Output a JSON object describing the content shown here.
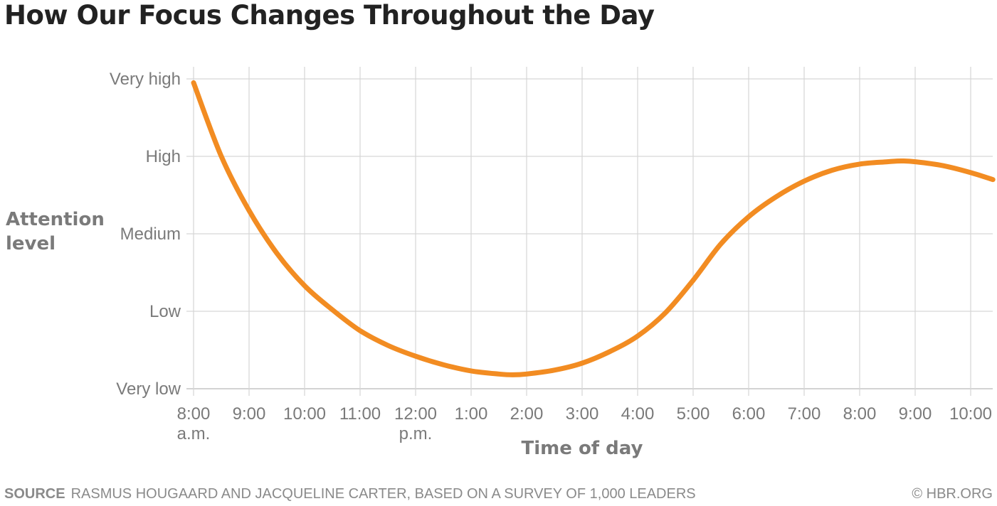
{
  "title": "How Our Focus Changes Throughout the Day",
  "source_label": "SOURCE",
  "source_text": "RASMUS HOUGAARD AND JACQUELINE CARTER, BASED ON A SURVEY OF 1,000 LEADERS",
  "copyright": "© HBR.ORG",
  "chart_data": {
    "type": "line",
    "title": "How Our Focus Changes Throughout the Day",
    "xlabel": "Time of day",
    "ylabel": "Attention level",
    "y_categories": [
      "Very low",
      "Low",
      "Medium",
      "High",
      "Very high"
    ],
    "x_ticks": [
      {
        "label": "8:00",
        "sub": "a.m."
      },
      {
        "label": "9:00",
        "sub": ""
      },
      {
        "label": "10:00",
        "sub": ""
      },
      {
        "label": "11:00",
        "sub": ""
      },
      {
        "label": "12:00",
        "sub": "p.m."
      },
      {
        "label": "1:00",
        "sub": ""
      },
      {
        "label": "2:00",
        "sub": ""
      },
      {
        "label": "3:00",
        "sub": ""
      },
      {
        "label": "4:00",
        "sub": ""
      },
      {
        "label": "5:00",
        "sub": ""
      },
      {
        "label": "6:00",
        "sub": ""
      },
      {
        "label": "7:00",
        "sub": ""
      },
      {
        "label": "8:00",
        "sub": ""
      },
      {
        "label": "9:00",
        "sub": ""
      },
      {
        "label": "10:00",
        "sub": ""
      }
    ],
    "xlim": [
      8,
      22.45
    ],
    "ylim": [
      0,
      4
    ],
    "grid": true,
    "line_color": "#f28c22",
    "series": [
      {
        "x": [
          8.0,
          8.5,
          9.0,
          9.5,
          10.0,
          10.5,
          11.0,
          11.5,
          12.0,
          12.5,
          13.0,
          13.5,
          13.75,
          14.0,
          14.5,
          15.0,
          15.5,
          16.0,
          16.5,
          17.0,
          17.5,
          18.0,
          18.5,
          19.0,
          19.5,
          20.0,
          20.5,
          20.75,
          21.0,
          21.5,
          22.0,
          22.4
        ],
        "y": [
          3.95,
          3.0,
          2.3,
          1.75,
          1.33,
          1.02,
          0.75,
          0.56,
          0.42,
          0.31,
          0.23,
          0.19,
          0.18,
          0.19,
          0.24,
          0.33,
          0.48,
          0.68,
          0.98,
          1.4,
          1.87,
          2.22,
          2.48,
          2.68,
          2.82,
          2.9,
          2.93,
          2.94,
          2.93,
          2.88,
          2.79,
          2.7
        ]
      }
    ]
  }
}
